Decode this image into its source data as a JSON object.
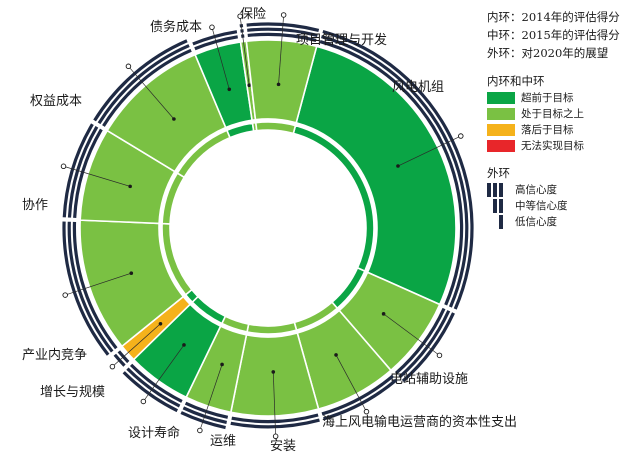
{
  "chart_data": {
    "type": "sunburst",
    "legend_rings": [
      {
        "key": "inner",
        "label": "内环：2014年的评估得分"
      },
      {
        "key": "middle",
        "label": "中环：2015年的评估得分"
      },
      {
        "key": "outer",
        "label": "外环：对2020年的展望"
      }
    ],
    "status_legend_title": "内环和中环",
    "status_legend": [
      {
        "key": "ahead",
        "label": "超前于目标",
        "color": "#0aa545"
      },
      {
        "key": "above",
        "label": "处于目标之上",
        "color": "#7ac143"
      },
      {
        "key": "behind",
        "label": "落后于目标",
        "color": "#f5b21b"
      },
      {
        "key": "unable",
        "label": "无法实现目标",
        "color": "#e8262a"
      }
    ],
    "confidence_legend_title": "外环",
    "confidence_legend": [
      {
        "level": 3,
        "label": "高信心度"
      },
      {
        "level": 2,
        "label": "中等信心度"
      },
      {
        "level": 1,
        "label": "低信心度"
      }
    ],
    "segments": [
      {
        "name": "风电机组",
        "share": 0.275,
        "inner": "ahead",
        "middle": "ahead",
        "outer_confidence": 3
      },
      {
        "name": "电站辅助设施",
        "share": 0.07,
        "inner": "ahead",
        "middle": "above",
        "outer_confidence": 3
      },
      {
        "name": "海上风电输电运营商的资本性支出",
        "share": 0.07,
        "inner": "above",
        "middle": "above",
        "outer_confidence": 2
      },
      {
        "name": "安装",
        "share": 0.075,
        "inner": "above",
        "middle": "above",
        "outer_confidence": 2
      },
      {
        "name": "运维",
        "share": 0.04,
        "inner": "above",
        "middle": "above",
        "outer_confidence": 3
      },
      {
        "name": "设计寿命",
        "share": 0.055,
        "inner": "ahead",
        "middle": "ahead",
        "outer_confidence": 3
      },
      {
        "name": "增长与规模",
        "share": 0.015,
        "inner": "ahead",
        "middle": "behind",
        "outer_confidence": 2
      },
      {
        "name": "产业内竞争",
        "share": 0.115,
        "inner": "above",
        "middle": "above",
        "outer_confidence": 3
      },
      {
        "name": "协作",
        "share": 0.08,
        "inner": "above",
        "middle": "above",
        "outer_confidence": 3
      },
      {
        "name": "权益成本",
        "share": 0.1,
        "inner": "above",
        "middle": "above",
        "outer_confidence": 3
      },
      {
        "name": "债务成本",
        "share": 0.04,
        "inner": "ahead",
        "middle": "ahead",
        "outer_confidence": 2
      },
      {
        "name": "保险",
        "share": 0.005,
        "inner": "above",
        "middle": "above",
        "outer_confidence": 3
      },
      {
        "name": "项目管理与开发",
        "share": 0.06,
        "inner": "above",
        "middle": "above",
        "outer_confidence": 3
      }
    ]
  }
}
